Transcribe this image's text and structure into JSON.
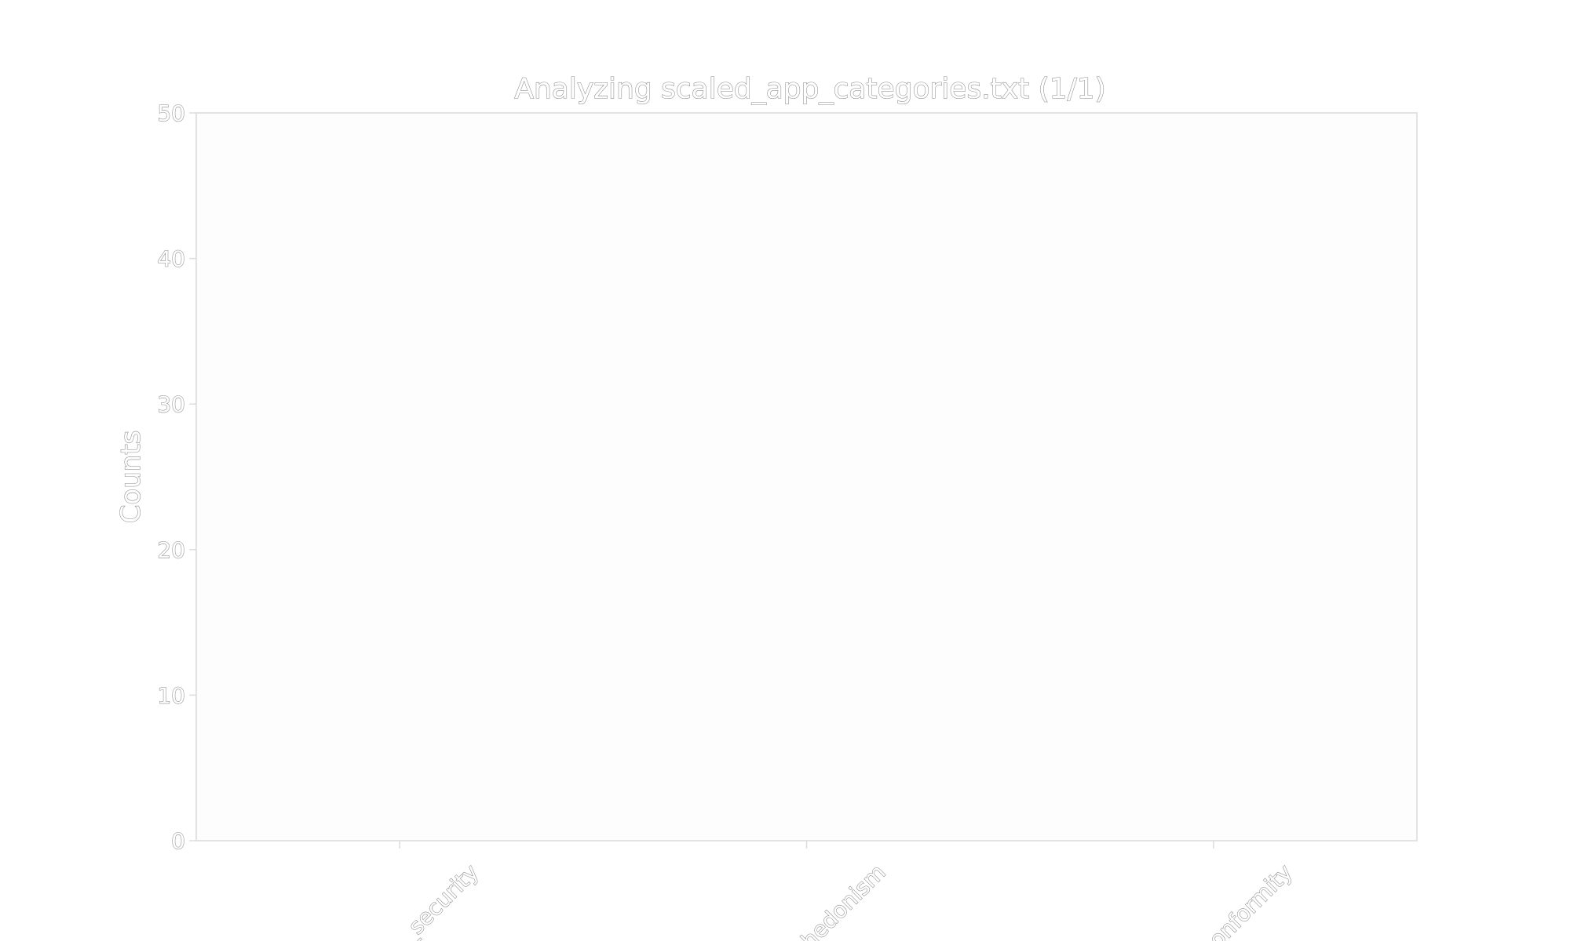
{
  "chart_data": {
    "type": "bar",
    "title": "Analyzing scaled_app_categories.txt (1/1)",
    "xlabel": "",
    "ylabel": "Counts",
    "categories": [
      "…_security",
      "hedonism",
      "conformity"
    ],
    "values": [
      0,
      0,
      0
    ],
    "ylim": [
      0,
      50
    ],
    "yticks": [
      0,
      10,
      20,
      30,
      40,
      50
    ],
    "grid": false,
    "legend": "none"
  }
}
